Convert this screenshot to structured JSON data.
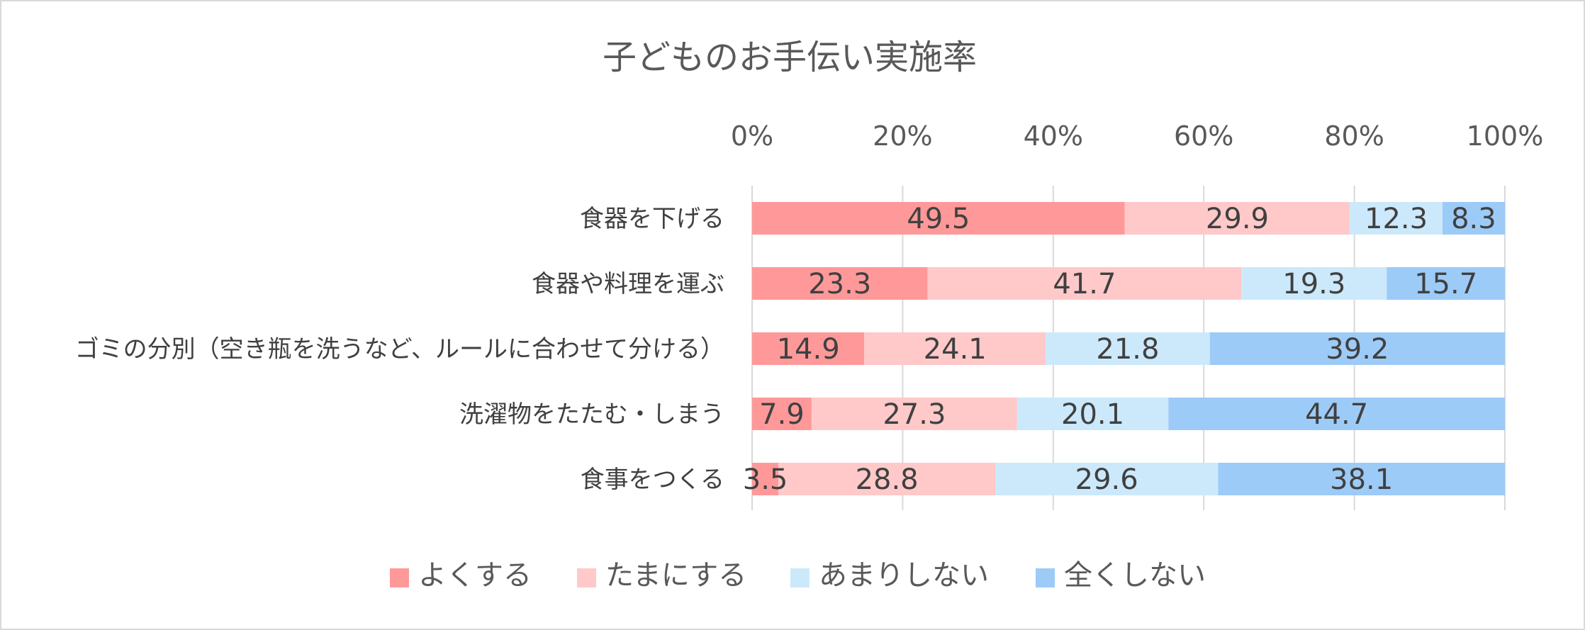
{
  "chart_data": {
    "type": "bar",
    "orientation": "horizontal",
    "stacked": "percent",
    "title": "子どものお手伝い実施率",
    "categories": [
      "食器を下げる",
      "食器や料理を運ぶ",
      "ゴミの分別（空き瓶を洗うなど、ルールに合わせて分ける）",
      "洗濯物をたたむ・しまう",
      "食事をつくる"
    ],
    "series": [
      {
        "name": "よくする",
        "color": "#ff9999",
        "values": [
          49.5,
          23.3,
          14.9,
          7.9,
          3.5
        ]
      },
      {
        "name": "たまにする",
        "color": "#ffc9c9",
        "values": [
          29.9,
          41.7,
          24.1,
          27.3,
          28.8
        ]
      },
      {
        "name": "あまりしない",
        "color": "#cce9fb",
        "values": [
          12.3,
          19.3,
          21.8,
          20.1,
          29.6
        ]
      },
      {
        "name": "全くしない",
        "color": "#9dcbf7",
        "values": [
          8.3,
          15.7,
          39.2,
          44.7,
          38.1
        ]
      }
    ],
    "x_ticks": [
      "0%",
      "20%",
      "40%",
      "60%",
      "80%",
      "100%"
    ],
    "xlim": [
      0,
      100
    ],
    "axis_position": "top",
    "grid": true,
    "legend_position": "bottom"
  }
}
